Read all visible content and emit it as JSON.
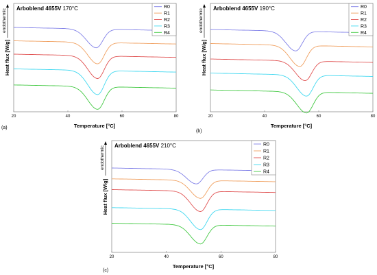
{
  "chart_data": [
    {
      "panel_label": "(a)",
      "type": "line",
      "title_bold": "Arboblend 4655V",
      "title_rest": " 170°C",
      "xlabel": "Temperature [°C]",
      "ylabel": "Heat flux [W/g]",
      "y_annotation": "endothermic",
      "xlim": [
        20,
        80
      ],
      "xticks": [
        "20",
        "40",
        "60",
        "80"
      ],
      "legend_position": "top-right",
      "peak_x": [
        50.5,
        51.0,
        51.0,
        51.0,
        51.0
      ],
      "series": [
        {
          "name": "R0",
          "color": "#8080e8",
          "offset": 0.0,
          "depth": 1.4
        },
        {
          "name": "R1",
          "color": "#f0a060",
          "offset": -1.0,
          "depth": 1.6
        },
        {
          "name": "R2",
          "color": "#e05050",
          "offset": -2.0,
          "depth": 1.7
        },
        {
          "name": "R3",
          "color": "#40d8f0",
          "offset": -3.1,
          "depth": 1.8
        },
        {
          "name": "R4",
          "color": "#40c840",
          "offset": -4.3,
          "depth": 1.7
        }
      ]
    },
    {
      "panel_label": "(b)",
      "type": "line",
      "title_bold": "Arboblend 4655V",
      "title_rest": " 190°C",
      "xlabel": "Temperature [°C]",
      "ylabel": "Heat flux [W/g]",
      "y_annotation": "endothermic",
      "xlim": [
        20,
        80
      ],
      "xticks": [
        "20",
        "40",
        "60",
        "80"
      ],
      "legend_position": "top-right",
      "peak_x": [
        51.5,
        53.0,
        55.0,
        55.5,
        55.5
      ],
      "series": [
        {
          "name": "R0",
          "color": "#8080e8",
          "offset": 0.0,
          "depth": 1.4
        },
        {
          "name": "R1",
          "color": "#f0a060",
          "offset": -1.0,
          "depth": 1.5
        },
        {
          "name": "R2",
          "color": "#e05050",
          "offset": -2.1,
          "depth": 1.4
        },
        {
          "name": "R3",
          "color": "#40d8f0",
          "offset": -3.1,
          "depth": 1.5
        },
        {
          "name": "R4",
          "color": "#40c840",
          "offset": -4.3,
          "depth": 1.5
        }
      ]
    },
    {
      "panel_label": "(c)",
      "type": "line",
      "title_bold": "Arboblend 4655V",
      "title_rest": " 210°C",
      "xlabel": "Temperature [°C]",
      "ylabel": "Heat flux [W/g]",
      "y_annotation": "endothermic",
      "xlim": [
        20,
        80
      ],
      "xticks": [
        "20",
        "40",
        "60",
        "80"
      ],
      "legend_position": "top-right",
      "peak_x": [
        51.0,
        52.5,
        52.5,
        52.5,
        52.5
      ],
      "series": [
        {
          "name": "R0",
          "color": "#8080e8",
          "offset": 0.0,
          "depth": 1.2
        },
        {
          "name": "R1",
          "color": "#f0a060",
          "offset": -0.9,
          "depth": 1.5
        },
        {
          "name": "R2",
          "color": "#e05050",
          "offset": -1.8,
          "depth": 1.7
        },
        {
          "name": "R3",
          "color": "#40d8f0",
          "offset": -3.3,
          "depth": 1.7
        },
        {
          "name": "R4",
          "color": "#40c840",
          "offset": -4.6,
          "depth": 1.6
        }
      ]
    }
  ]
}
